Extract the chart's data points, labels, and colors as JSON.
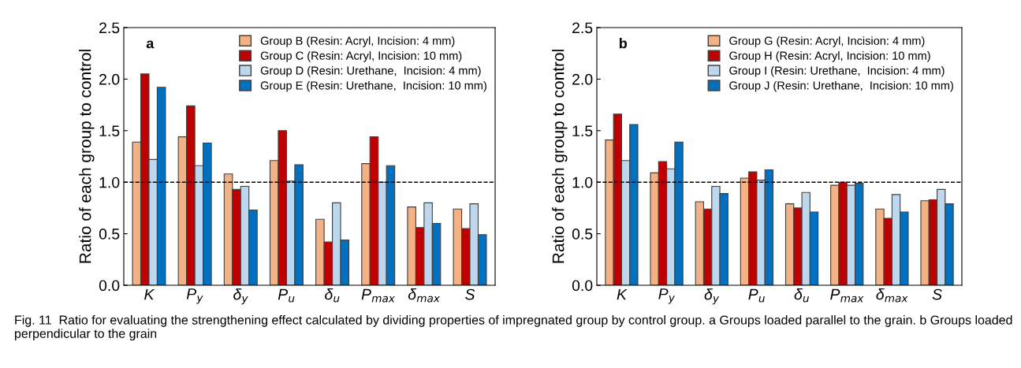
{
  "chart_data": [
    {
      "type": "bar",
      "ylabel": "Ratio of each group to control",
      "categories": [
        "K",
        "P$_{y}$",
        "δ$_{y}$",
        "P$_{u}$",
        "δ$_{u}$",
        "P$_{max}$",
        "δ$_{max}$",
        "S"
      ],
      "ylim": [
        0,
        2.5
      ],
      "yticks": [
        {
          "value": 0,
          "label": "0.0"
        },
        0.5,
        {
          "value": 1,
          "label": "1.0"
        },
        1.5,
        {
          "value": 2,
          "label": "2.0"
        },
        2.5
      ],
      "legend": "top right",
      "grid": false,
      "annotations": [
        "a"
      ],
      "ref_lines": [
        {
          "axis": "y",
          "value": 1,
          "line_style": "dashed",
          "color": "#000000"
        }
      ],
      "series": [
        {
          "name": "Group B (Resin: Acryl, Incision: 4 mm)",
          "color": "#f4b183",
          "values": [
            1.39,
            1.44,
            1.08,
            1.21,
            0.64,
            1.18,
            0.76,
            0.74
          ]
        },
        {
          "name": "Group C (Resin: Acryl, Incision: 10 mm)",
          "color": "#c00000",
          "values": [
            2.05,
            1.74,
            0.93,
            1.5,
            0.42,
            1.44,
            0.56,
            0.55
          ]
        },
        {
          "name": "Group D (Resin: Urethane,  Incision: 4 mm)",
          "color": "#bdd7ee",
          "values": [
            1.22,
            1.16,
            0.96,
            1.01,
            0.8,
            1.0,
            0.8,
            0.79
          ]
        },
        {
          "name": "Group E (Resin: Urethane,  Incision: 10 mm)",
          "color": "#0070c0",
          "values": [
            1.92,
            1.38,
            0.73,
            1.17,
            0.44,
            1.16,
            0.6,
            0.49
          ]
        }
      ]
    },
    {
      "type": "bar",
      "ylabel": "Ratio of each group to control",
      "categories": [
        "K",
        "P$_{y}$",
        "δ$_{y}$",
        "P$_{u}$",
        "δ$_{u}$",
        "P$_{max}$",
        "δ$_{max}$",
        "S"
      ],
      "ylim": [
        0,
        2.5
      ],
      "yticks": [
        {
          "value": 0,
          "label": "0.0"
        },
        0.5,
        {
          "value": 1,
          "label": "1.0"
        },
        1.5,
        {
          "value": 2,
          "label": "2.0"
        },
        2.5
      ],
      "legend": "top right",
      "grid": false,
      "annotations": [
        "b",
        "Fig. 11  Ratio for evaluating the strengthening effect calculated by dividing properties of impregnated group by control group. a Groups loaded parallel to the grain. b Groups loaded perpendicular to the grain"
      ],
      "ref_lines": [
        {
          "axis": "y",
          "value": 1,
          "line_style": "dashed",
          "color": "#000000"
        }
      ],
      "series": [
        {
          "name": "Group G (Resin: Acryl, Incision: 4 mm)",
          "color": "#f4b183",
          "values": [
            1.41,
            1.09,
            0.81,
            1.04,
            0.79,
            0.97,
            0.74,
            0.82
          ]
        },
        {
          "name": "Group H (Resin: Acryl, Incision: 10 mm)",
          "color": "#c00000",
          "values": [
            1.66,
            1.2,
            0.74,
            1.1,
            0.75,
            1.0,
            0.65,
            0.83
          ]
        },
        {
          "name": "Group I (Resin: Urethane,  Incision: 4 mm)",
          "color": "#bdd7ee",
          "values": [
            1.21,
            1.13,
            0.96,
            1.02,
            0.9,
            0.97,
            0.88,
            0.93
          ]
        },
        {
          "name": "Group J (Resin: Urethane,  Incision: 10 mm)",
          "color": "#0070c0",
          "values": [
            1.56,
            1.39,
            0.89,
            1.12,
            0.71,
            0.99,
            0.71,
            0.79
          ]
        }
      ]
    }
  ]
}
